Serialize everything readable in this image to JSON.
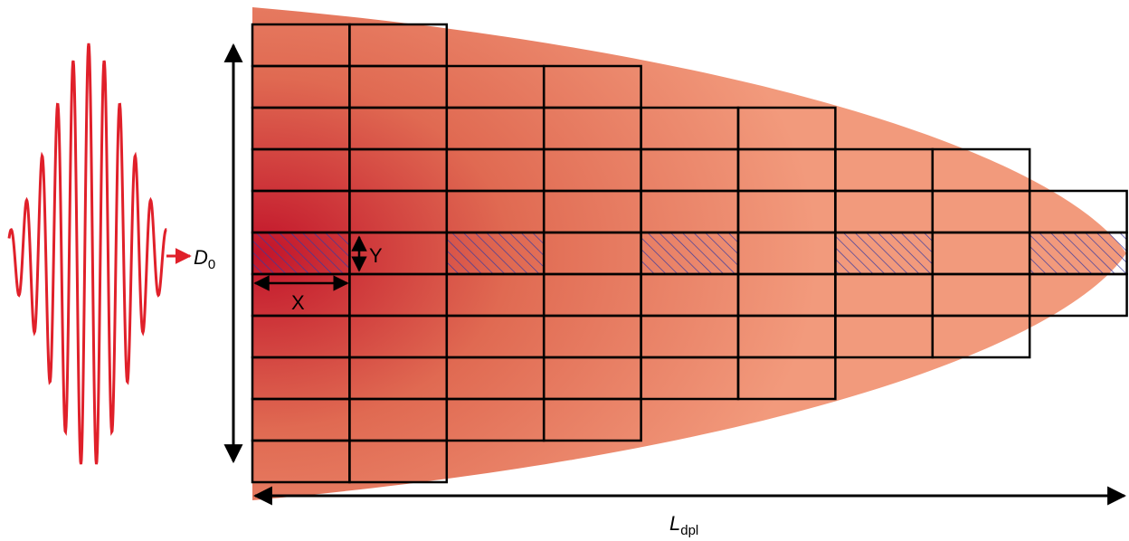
{
  "labels": {
    "beam_diameter": {
      "main": "D",
      "sub": "0"
    },
    "cell_height": "Y",
    "cell_width": "X",
    "depletion_length": {
      "main": "L",
      "sub": "dpl"
    }
  }
}
